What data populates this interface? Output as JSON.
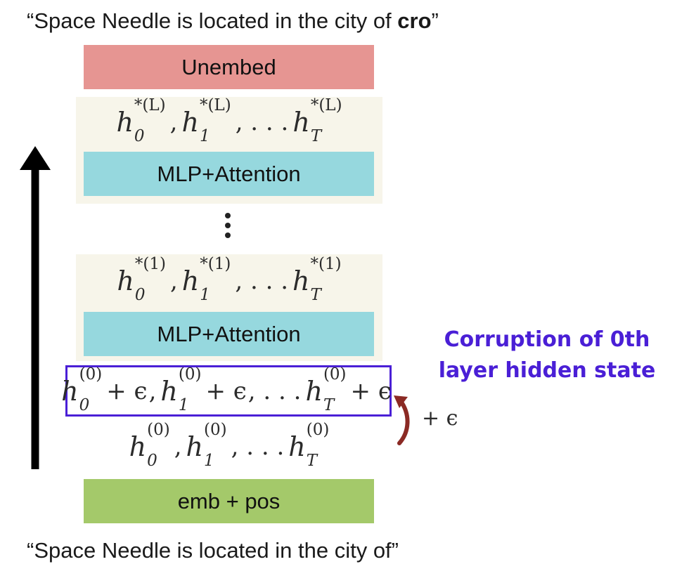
{
  "top_caption": {
    "prefix": "“Space Needle is located in the city of ",
    "bold": "cro",
    "suffix": "”"
  },
  "bottom_caption": "“Space Needle is located in the city of”",
  "blocks": {
    "unembed": "Unembed",
    "mlp_attention_top": "MLP+Attention",
    "mlp_attention_bottom": "MLP+Attention",
    "emb_pos": "emb + pos"
  },
  "hidden_states": {
    "layer_L": {
      "superscript": "*(L)",
      "subs": [
        "0",
        "1",
        "T"
      ]
    },
    "layer_1": {
      "superscript": "*(1)",
      "subs": [
        "0",
        "1",
        "T"
      ]
    },
    "layer_0_corrupted": {
      "superscript": "(0)",
      "subs": [
        "0",
        "1",
        "T"
      ],
      "noise": "+ ϵ"
    },
    "layer_0": {
      "superscript": "(0)",
      "subs": [
        "0",
        "1",
        "T"
      ]
    }
  },
  "annotation": {
    "line1": "Corruption of 0th",
    "line2": "layer hidden state",
    "color": "#4a1fd6"
  },
  "noise_label": "+ ϵ",
  "colors": {
    "unembed": "#e69592",
    "mlp": "#96d8de",
    "panel": "#f7f5ea",
    "emb": "#a4c96a",
    "corruption_box": "#4a1fd6",
    "curved_arrow": "#8b2a24"
  }
}
